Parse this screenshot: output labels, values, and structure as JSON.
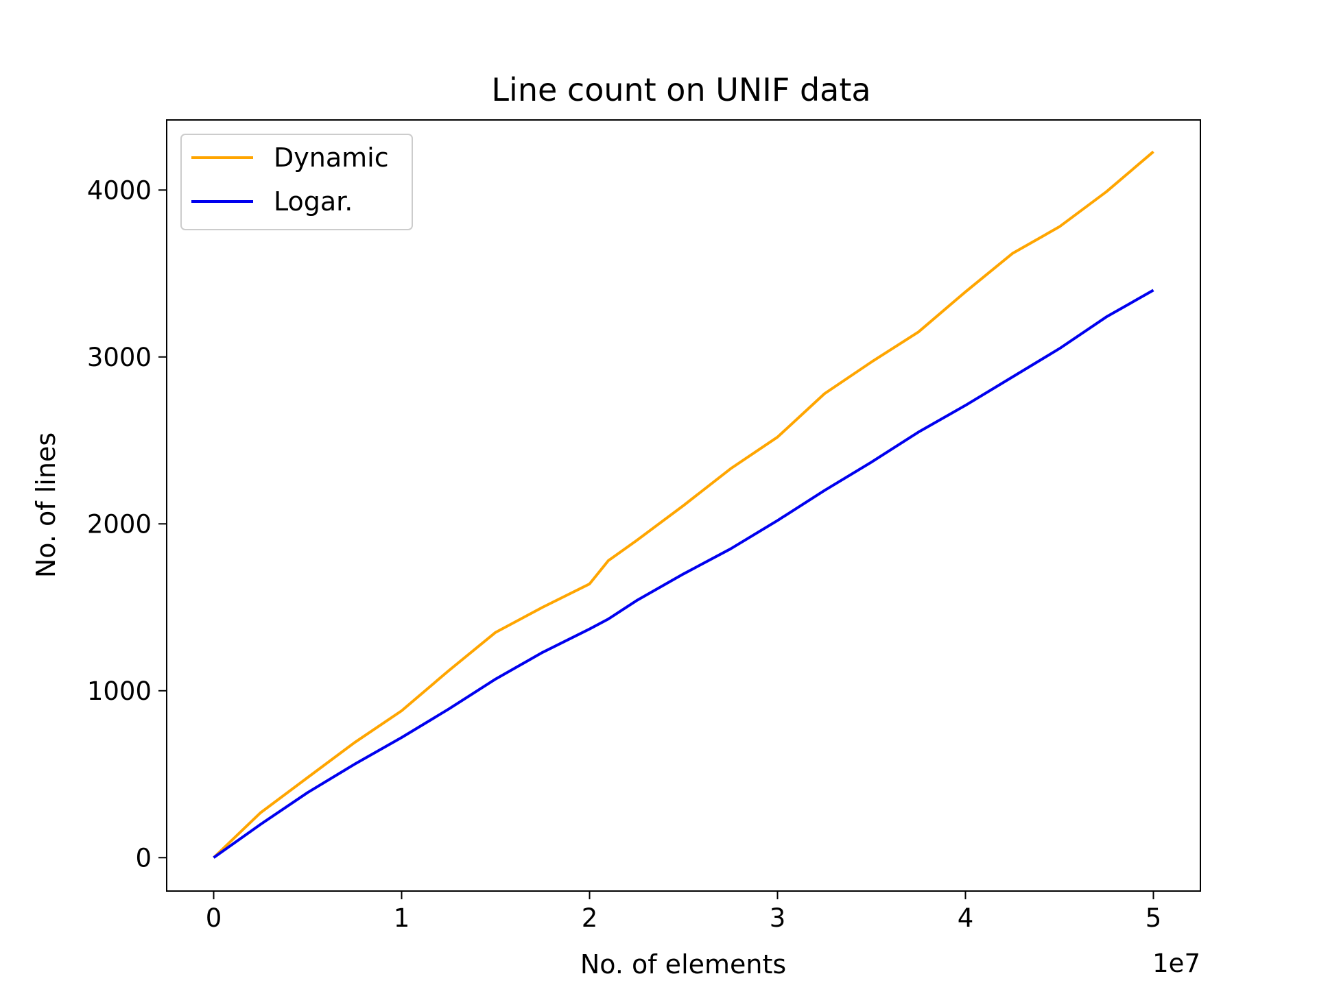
{
  "chart_data": {
    "type": "line",
    "title": "Line count on UNIF data",
    "xlabel": "No. of elements",
    "ylabel": "No. of lines",
    "x_offset_label": "1e7",
    "xlim": [
      -2500000,
      52500000
    ],
    "ylim": [
      -200,
      4420
    ],
    "x_ticks": [
      0,
      10000000,
      20000000,
      30000000,
      40000000,
      50000000
    ],
    "x_tick_labels": [
      "0",
      "1",
      "2",
      "3",
      "4",
      "5"
    ],
    "y_ticks": [
      0,
      1000,
      2000,
      3000,
      4000
    ],
    "y_tick_labels": [
      "0",
      "1000",
      "2000",
      "3000",
      "4000"
    ],
    "grid": false,
    "legend_position": "upper-left",
    "x": [
      0,
      2500000,
      5000000,
      7500000,
      10000000,
      12500000,
      15000000,
      17500000,
      20000000,
      21000000,
      22500000,
      25000000,
      27500000,
      30000000,
      32500000,
      35000000,
      37500000,
      40000000,
      42500000,
      45000000,
      47500000,
      50000000
    ],
    "series": [
      {
        "name": "Dynamic",
        "color": "#ffa500",
        "values": [
          0,
          270,
          480,
          690,
          880,
          1120,
          1350,
          1500,
          1640,
          1780,
          1900,
          2110,
          2330,
          2520,
          2780,
          2970,
          3150,
          3390,
          3620,
          3780,
          3990,
          4230
        ]
      },
      {
        "name": "Logar.",
        "color": "#0000ee",
        "values": [
          0,
          200,
          390,
          560,
          720,
          890,
          1070,
          1230,
          1370,
          1430,
          1540,
          1700,
          1850,
          2020,
          2200,
          2370,
          2550,
          2710,
          2880,
          3050,
          3240,
          3400
        ]
      }
    ]
  }
}
